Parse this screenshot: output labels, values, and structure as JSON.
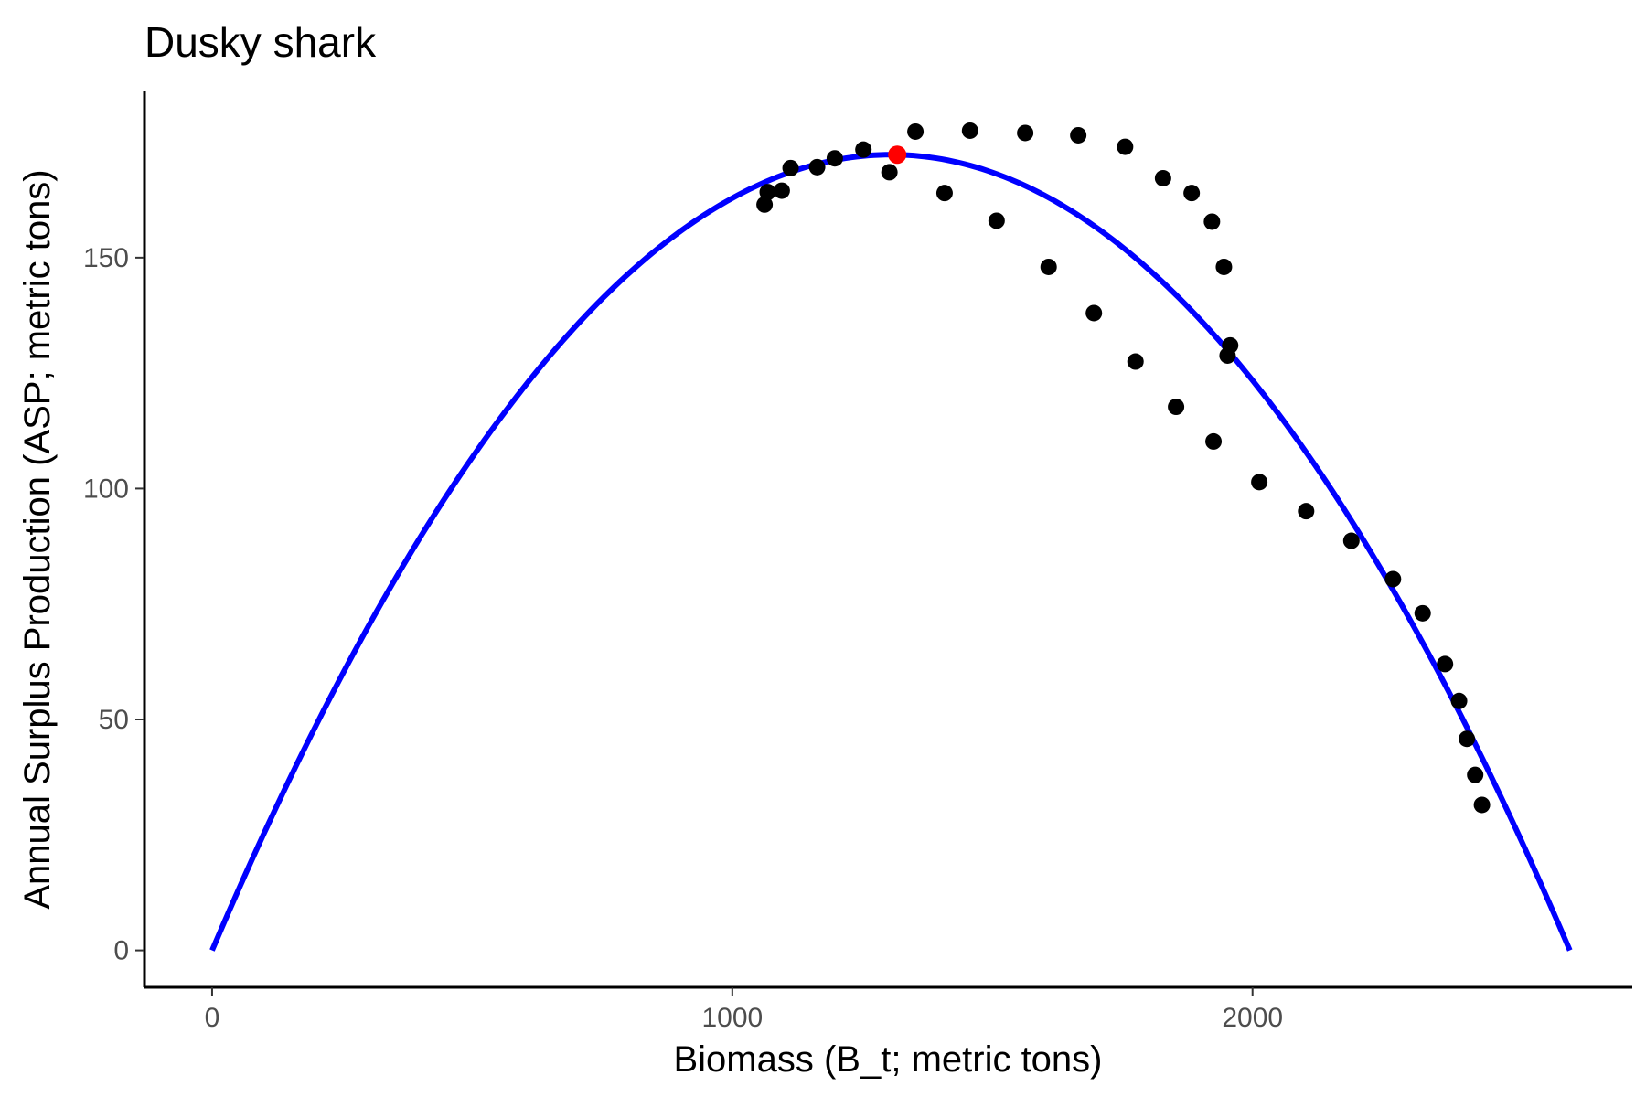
{
  "chart_data": {
    "type": "scatter",
    "title": "Dusky shark",
    "xlabel": "Biomass (B_t; metric tons)",
    "ylabel": "Annual Surplus Production (ASP; metric tons)",
    "xlim": [
      -130,
      2730
    ],
    "ylim": [
      -8,
      186
    ],
    "x_ticks": [
      0,
      1000,
      2000
    ],
    "y_ticks": [
      0,
      50,
      100,
      150
    ],
    "grid": false,
    "legend": "none",
    "colors": {
      "points": "#000000",
      "curve": "#0000ff",
      "peak": "#ff0000"
    },
    "curve": {
      "k": 2610,
      "msy": 172.3,
      "x_start": 0,
      "x_end": 2610
    },
    "peak_point": {
      "x": 1317,
      "y": 172.3
    },
    "points": [
      {
        "x": 1062,
        "y": 161.5
      },
      {
        "x": 1068,
        "y": 164.2
      },
      {
        "x": 1095,
        "y": 164.5
      },
      {
        "x": 1112,
        "y": 169.4
      },
      {
        "x": 1163,
        "y": 169.6
      },
      {
        "x": 1197,
        "y": 171.5
      },
      {
        "x": 1252,
        "y": 173.4
      },
      {
        "x": 1302,
        "y": 168.5
      },
      {
        "x": 1352,
        "y": 177.3
      },
      {
        "x": 1408,
        "y": 164.0
      },
      {
        "x": 1457,
        "y": 177.5
      },
      {
        "x": 1508,
        "y": 158.0
      },
      {
        "x": 1563,
        "y": 177.0
      },
      {
        "x": 1608,
        "y": 148.0
      },
      {
        "x": 1665,
        "y": 176.5
      },
      {
        "x": 1695,
        "y": 138.0
      },
      {
        "x": 1755,
        "y": 174.0
      },
      {
        "x": 1775,
        "y": 127.5
      },
      {
        "x": 1828,
        "y": 167.2
      },
      {
        "x": 1853,
        "y": 117.7
      },
      {
        "x": 1883,
        "y": 164.0
      },
      {
        "x": 1922,
        "y": 157.8
      },
      {
        "x": 1925,
        "y": 110.2
      },
      {
        "x": 1945,
        "y": 148.0
      },
      {
        "x": 1957,
        "y": 131.0
      },
      {
        "x": 1952,
        "y": 128.8
      },
      {
        "x": 2013,
        "y": 101.4
      },
      {
        "x": 2103,
        "y": 95.1
      },
      {
        "x": 2190,
        "y": 88.7
      },
      {
        "x": 2270,
        "y": 80.4
      },
      {
        "x": 2327,
        "y": 73.0
      },
      {
        "x": 2370,
        "y": 62.0
      },
      {
        "x": 2397,
        "y": 54.0
      },
      {
        "x": 2412,
        "y": 45.8
      },
      {
        "x": 2428,
        "y": 38.0
      },
      {
        "x": 2441,
        "y": 31.5
      }
    ]
  }
}
